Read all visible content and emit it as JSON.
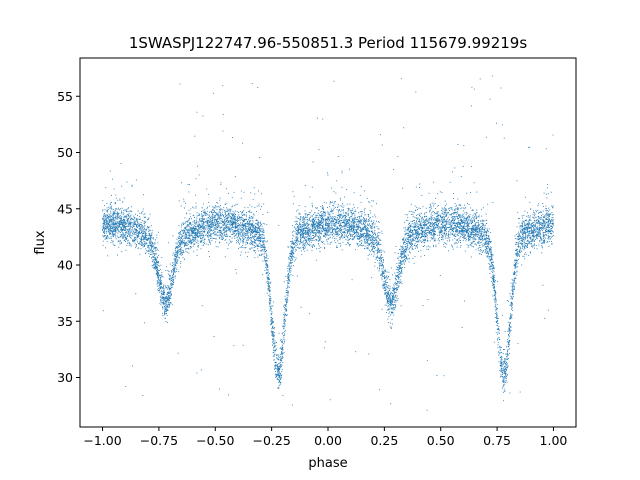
{
  "chart_data": {
    "type": "scatter",
    "title": "1SWASPJ122747.96-550851.3 Period 115679.99219s",
    "xlabel": "phase",
    "ylabel": "flux",
    "xlim": [
      -1.1,
      1.1
    ],
    "ylim": [
      25.6,
      58.4
    ],
    "xticks": [
      -1.0,
      -0.75,
      -0.5,
      -0.25,
      0.0,
      0.25,
      0.5,
      0.75,
      1.0
    ],
    "xtick_labels": [
      "−1.00",
      "−0.75",
      "−0.50",
      "−0.25",
      "0.00",
      "0.25",
      "0.50",
      "0.75",
      "1.00"
    ],
    "yticks": [
      30,
      35,
      40,
      45,
      50,
      55
    ],
    "ytick_labels": [
      "30",
      "35",
      "40",
      "45",
      "50",
      "55"
    ],
    "grid": false,
    "point_color": "#1f77b4",
    "series": [
      {
        "phase_range": [
          -1.0,
          1.0
        ],
        "baseline_flux": 43.0,
        "primary_eclipse": {
          "phases": [
            -0.22,
            0.78
          ],
          "min_flux": 31.0
        },
        "secondary_eclipse": {
          "phases": [
            -0.72,
            0.28
          ],
          "min_flux": 37.0
        },
        "scatter_sigma": 0.8,
        "outlier_range": [
          27,
          57
        ]
      }
    ]
  }
}
